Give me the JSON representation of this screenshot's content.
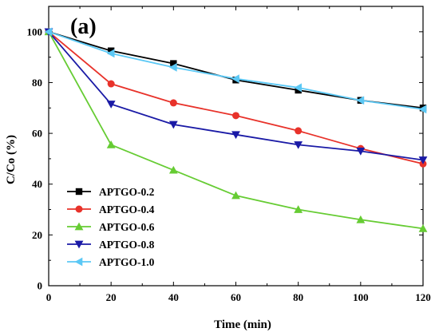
{
  "chart_data": {
    "type": "line",
    "panel_label": "(a)",
    "title": "",
    "xlabel": "Time (min)",
    "ylabel": "C/Co (%)",
    "xlim": [
      0,
      120
    ],
    "ylim": [
      0,
      110
    ],
    "xticks": [
      0,
      20,
      40,
      60,
      80,
      100,
      120
    ],
    "yticks": [
      0,
      20,
      40,
      60,
      80,
      100
    ],
    "grid": false,
    "legend_position": "bottom-left",
    "x": [
      0,
      20,
      40,
      60,
      80,
      100,
      120
    ],
    "series": [
      {
        "name": "APTGO-0.2",
        "color": "#000000",
        "marker": "square",
        "values": [
          100,
          92.5,
          87.5,
          81,
          77,
          73,
          70
        ]
      },
      {
        "name": "APTGO-0.4",
        "color": "#e8322a",
        "marker": "circle",
        "values": [
          100,
          79.5,
          72,
          67,
          61,
          54,
          48
        ]
      },
      {
        "name": "APTGO-0.6",
        "color": "#66cc33",
        "marker": "triangle-up",
        "values": [
          100,
          55.5,
          45.5,
          35.5,
          30,
          26,
          22.5
        ]
      },
      {
        "name": "APTGO-0.8",
        "color": "#1a1aa6",
        "marker": "triangle-down",
        "values": [
          100,
          71.5,
          63.5,
          59.5,
          55.5,
          53,
          49.5
        ]
      },
      {
        "name": "APTGO-1.0",
        "color": "#5bc8f5",
        "marker": "triangle-left",
        "values": [
          100,
          91.5,
          86,
          81.5,
          78,
          73,
          69.5
        ]
      }
    ]
  }
}
